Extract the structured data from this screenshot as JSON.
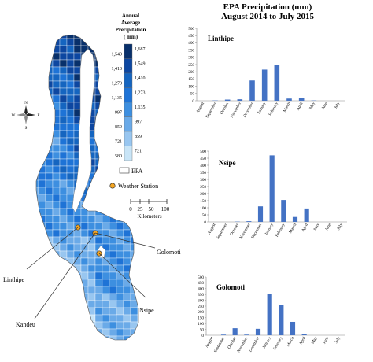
{
  "figure": {
    "title_line1": "EPA Precipitation (mm)",
    "title_line2": "August 2014 to July 2015"
  },
  "map": {
    "legend_title": [
      "Annual",
      "Average",
      "Precipitation",
      "( mm)"
    ],
    "legend_classes": [
      {
        "low": "1,549",
        "high": "1,687",
        "color": "#08306b"
      },
      {
        "low": "1,410",
        "high": "1,549",
        "color": "#0d47a1"
      },
      {
        "low": "1,273",
        "high": "1,410",
        "color": "#1565c0"
      },
      {
        "low": "1,135",
        "high": "1,273",
        "color": "#1e73d6"
      },
      {
        "low": "997",
        "high": "1,135",
        "color": "#3d8fe0"
      },
      {
        "low": "859",
        "high": "997",
        "color": "#6aaae8"
      },
      {
        "low": "721",
        "high": "859",
        "color": "#98c6f0"
      },
      {
        "low": "580",
        "high": "721",
        "color": "#c9e5f7"
      }
    ],
    "legend_epa": "EPA",
    "legend_station": "Weather Station",
    "scale_ticks": [
      "0",
      "25",
      "50",
      "100"
    ],
    "scale_unit": "Kilometers",
    "compass": {
      "n": "N",
      "s": "S",
      "e": "E",
      "w": "W"
    },
    "stations": [
      "Linthipe",
      "Kandeu",
      "Golomoti",
      "Nsipe"
    ],
    "colors": {
      "lake": "#ffffff",
      "border": "#ffffff",
      "station": "#f5a623",
      "station_stroke": "#333333"
    }
  },
  "chart_data": [
    {
      "type": "bar",
      "title": "Linthipe",
      "categories": [
        "August",
        "September",
        "October",
        "November",
        "December",
        "January",
        "February",
        "March",
        "April",
        "May",
        "June",
        "July"
      ],
      "values": [
        0,
        2,
        8,
        10,
        140,
        215,
        245,
        15,
        20,
        2,
        0,
        0
      ],
      "ylim": [
        0,
        500
      ],
      "yticks": [
        0,
        50,
        100,
        150,
        200,
        250,
        300,
        350,
        400,
        450,
        500
      ],
      "xlabel": "",
      "ylabel": "",
      "color": "#4472c4"
    },
    {
      "type": "bar",
      "title": "Nsipe",
      "categories": [
        "August",
        "September",
        "October",
        "November",
        "December",
        "January",
        "February",
        "March",
        "April",
        "May",
        "June",
        "July"
      ],
      "values": [
        0,
        0,
        2,
        5,
        110,
        470,
        155,
        35,
        95,
        0,
        0,
        0
      ],
      "ylim": [
        0,
        500
      ],
      "yticks": [
        0,
        50,
        100,
        150,
        200,
        250,
        300,
        350,
        400,
        450,
        500
      ],
      "xlabel": "",
      "ylabel": "",
      "color": "#4472c4"
    },
    {
      "type": "bar",
      "title": "Golomoti",
      "categories": [
        "August",
        "September",
        "October",
        "November",
        "December",
        "January",
        "February",
        "March",
        "April",
        "May",
        "June",
        "July"
      ],
      "values": [
        0,
        5,
        60,
        5,
        55,
        355,
        260,
        115,
        8,
        0,
        0,
        0
      ],
      "ylim": [
        0,
        500
      ],
      "yticks": [
        0,
        50,
        100,
        150,
        200,
        250,
        300,
        350,
        400,
        450,
        500
      ],
      "xlabel": "",
      "ylabel": "",
      "color": "#4472c4"
    }
  ]
}
